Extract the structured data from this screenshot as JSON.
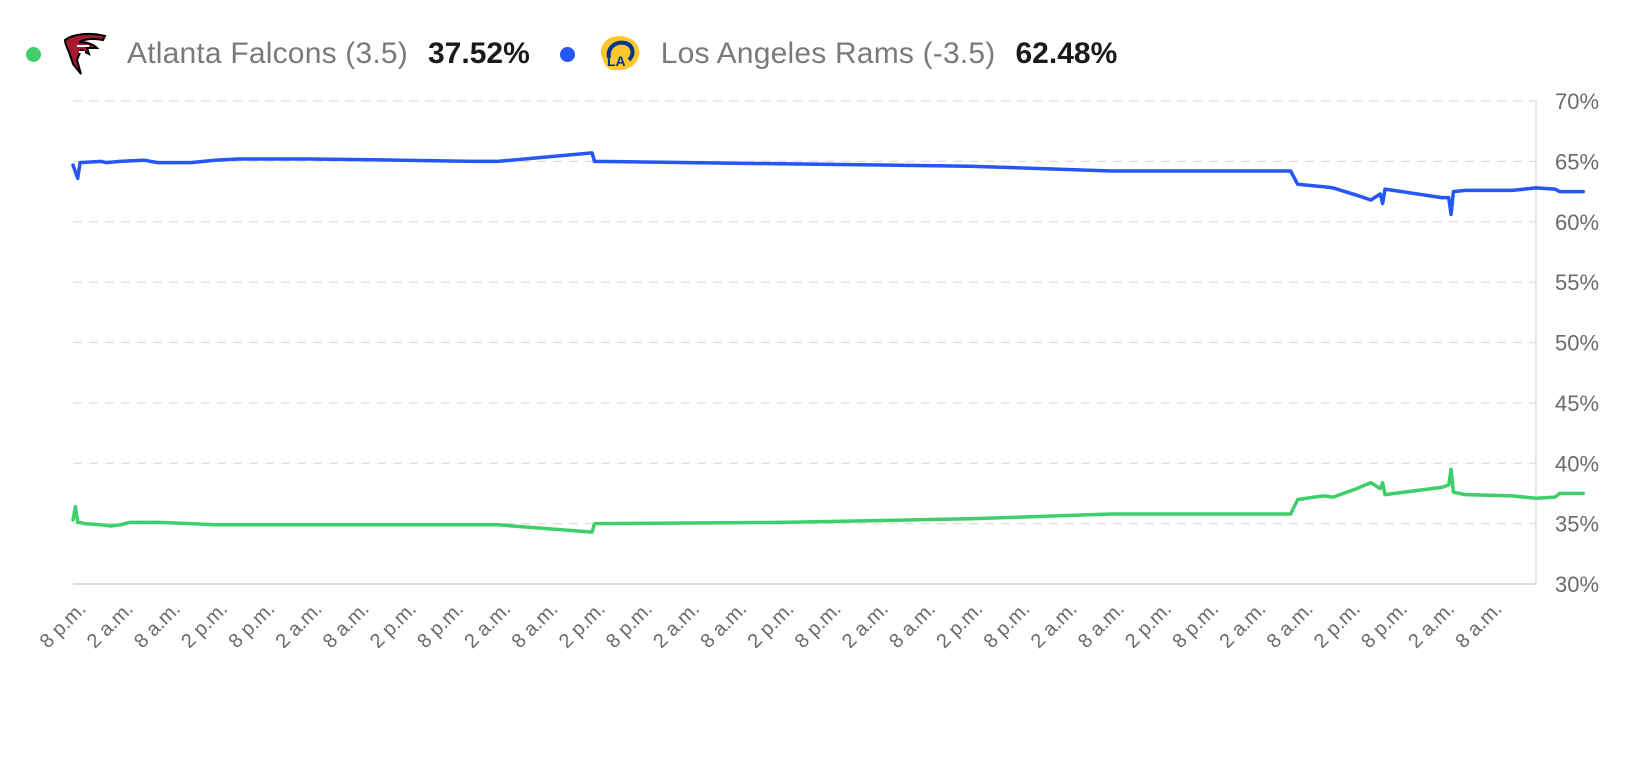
{
  "legend": [
    {
      "name": "Atlanta Falcons (3.5)",
      "value": "37.52%",
      "color": "#3ecf6a",
      "logo": "falcons-logo"
    },
    {
      "name": "Los Angeles Rams (-3.5)",
      "value": "62.48%",
      "color": "#2457f5",
      "logo": "rams-logo"
    }
  ],
  "chart_data": {
    "type": "line",
    "ylim": [
      30,
      70
    ],
    "y_ticks": [
      "70%",
      "65%",
      "60%",
      "55%",
      "50%",
      "45%",
      "40%",
      "35%",
      "30%"
    ],
    "x_tick_labels": [
      "8 p.m.",
      "2 a.m.",
      "8 a.m.",
      "2 p.m.",
      "8 p.m.",
      "2 a.m.",
      "8 a.m.",
      "2 p.m.",
      "8 p.m.",
      "2 a.m.",
      "8 a.m.",
      "2 p.m.",
      "8 p.m.",
      "2 a.m.",
      "8 a.m.",
      "2 p.m.",
      "8 p.m.",
      "2 a.m.",
      "8 a.m.",
      "2 p.m.",
      "8 p.m.",
      "2 a.m.",
      "8 a.m.",
      "2 p.m.",
      "8 p.m.",
      "2 a.m.",
      "8 a.m.",
      "2 p.m.",
      "8 p.m.",
      "2 a.m.",
      "8 a.m."
    ],
    "grid": true,
    "series": [
      {
        "name": "Los Angeles Rams (-3.5)",
        "color": "#2457f5",
        "points": [
          [
            0.0,
            64.7
          ],
          [
            0.1,
            63.6
          ],
          [
            0.15,
            64.9
          ],
          [
            0.6,
            65.0
          ],
          [
            0.7,
            64.9
          ],
          [
            1.0,
            65.0
          ],
          [
            1.5,
            65.1
          ],
          [
            1.8,
            64.9
          ],
          [
            2.5,
            64.9
          ],
          [
            3.0,
            65.1
          ],
          [
            3.5,
            65.2
          ],
          [
            5.0,
            65.2
          ],
          [
            7.0,
            65.1
          ],
          [
            8.5,
            65.0
          ],
          [
            9.0,
            65.0
          ],
          [
            11.0,
            65.7
          ],
          [
            11.05,
            65.0
          ],
          [
            15.0,
            64.8
          ],
          [
            19.0,
            64.6
          ],
          [
            22.0,
            64.2
          ],
          [
            25.8,
            64.2
          ],
          [
            25.95,
            63.1
          ],
          [
            26.5,
            62.9
          ],
          [
            26.7,
            62.8
          ],
          [
            27.2,
            62.2
          ],
          [
            27.5,
            61.8
          ],
          [
            27.7,
            62.3
          ],
          [
            27.75,
            61.5
          ],
          [
            27.8,
            62.7
          ],
          [
            29.0,
            62.0
          ],
          [
            29.15,
            62.0
          ],
          [
            29.2,
            60.6
          ],
          [
            29.25,
            62.5
          ],
          [
            29.5,
            62.6
          ],
          [
            30.5,
            62.6
          ],
          [
            31.0,
            62.8
          ],
          [
            31.4,
            62.7
          ],
          [
            31.5,
            62.5
          ],
          [
            32.0,
            62.5
          ]
        ]
      },
      {
        "name": "Atlanta Falcons (3.5)",
        "color": "#3ecf6a",
        "points": [
          [
            0.0,
            35.3
          ],
          [
            0.05,
            36.4
          ],
          [
            0.1,
            35.1
          ],
          [
            0.15,
            35.1
          ],
          [
            0.25,
            35.0
          ],
          [
            0.6,
            34.9
          ],
          [
            0.8,
            34.8
          ],
          [
            1.0,
            34.9
          ],
          [
            1.2,
            35.1
          ],
          [
            1.8,
            35.1
          ],
          [
            2.5,
            35.0
          ],
          [
            3.0,
            34.9
          ],
          [
            5.0,
            34.9
          ],
          [
            7.0,
            34.9
          ],
          [
            8.5,
            34.9
          ],
          [
            9.0,
            34.9
          ],
          [
            11.0,
            34.3
          ],
          [
            11.05,
            35.0
          ],
          [
            15.0,
            35.1
          ],
          [
            19.0,
            35.4
          ],
          [
            22.0,
            35.8
          ],
          [
            25.8,
            35.8
          ],
          [
            25.95,
            37.0
          ],
          [
            26.5,
            37.3
          ],
          [
            26.7,
            37.2
          ],
          [
            27.2,
            37.9
          ],
          [
            27.5,
            38.4
          ],
          [
            27.7,
            37.9
          ],
          [
            27.75,
            38.4
          ],
          [
            27.8,
            37.4
          ],
          [
            29.0,
            38.0
          ],
          [
            29.15,
            38.2
          ],
          [
            29.2,
            39.5
          ],
          [
            29.25,
            37.6
          ],
          [
            29.5,
            37.4
          ],
          [
            30.5,
            37.3
          ],
          [
            31.0,
            37.1
          ],
          [
            31.4,
            37.2
          ],
          [
            31.5,
            37.5
          ],
          [
            32.0,
            37.5
          ]
        ]
      }
    ]
  }
}
